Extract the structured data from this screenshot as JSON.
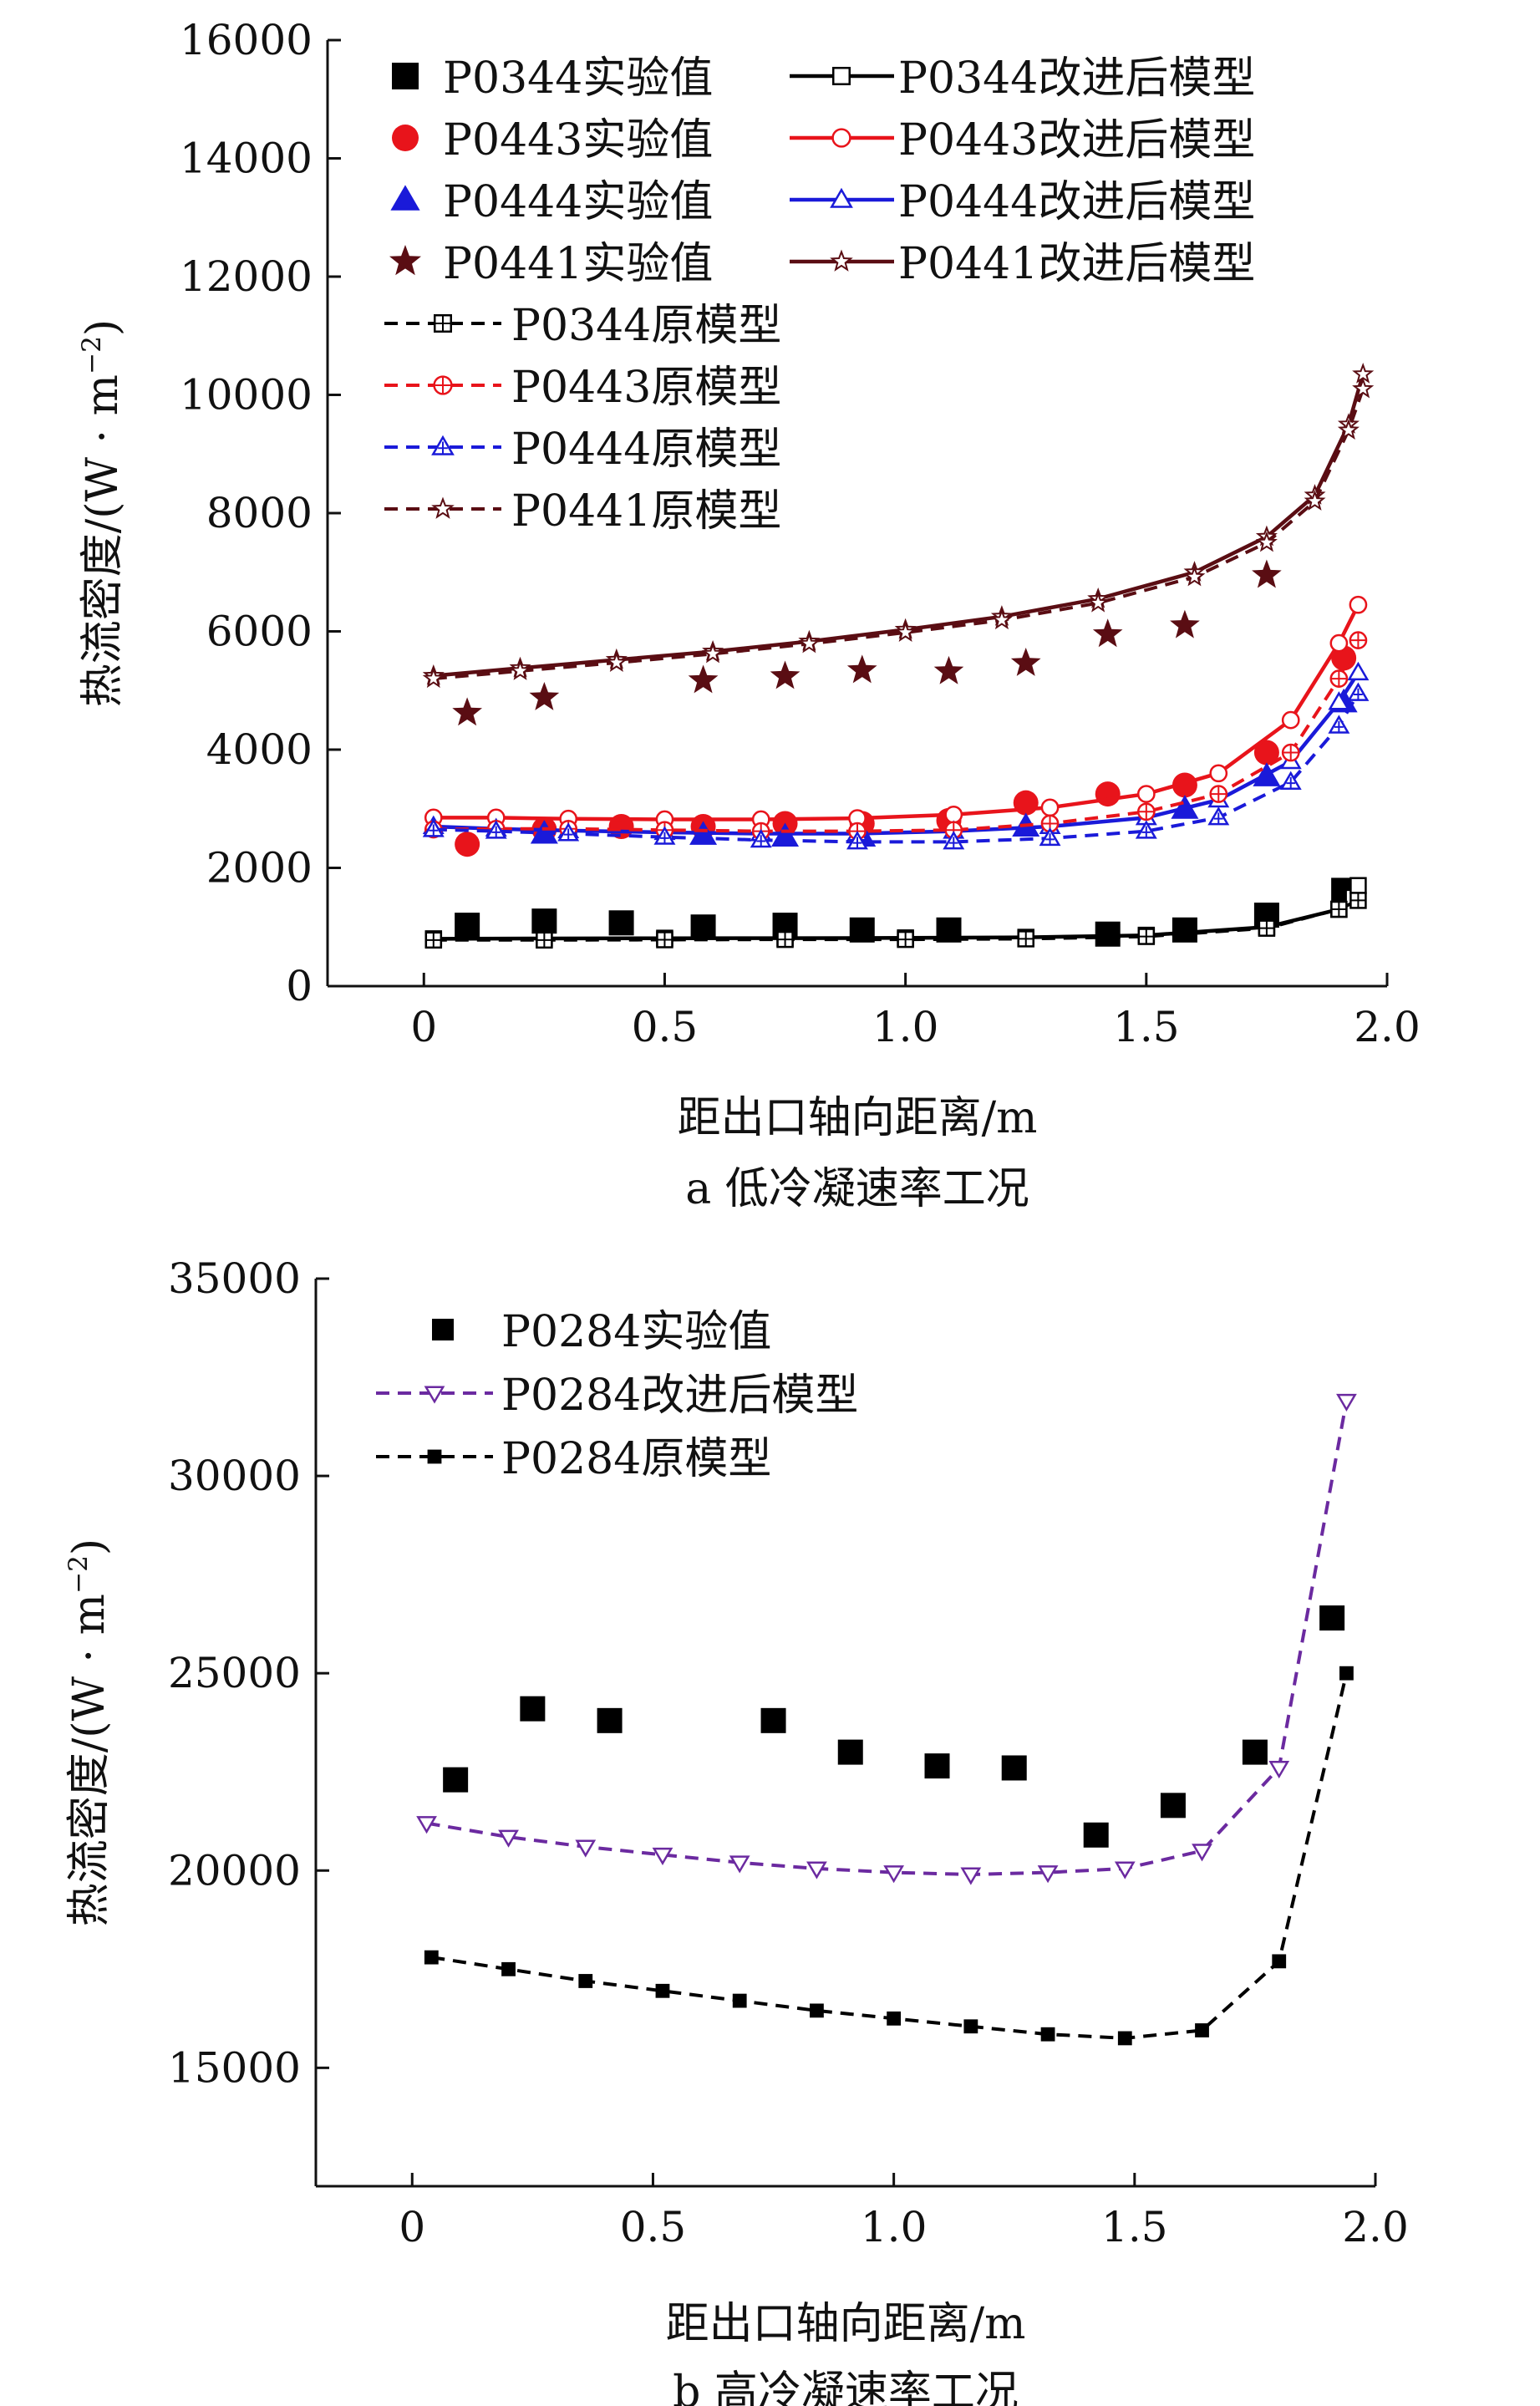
{
  "chart_data": [
    {
      "type": "scatter",
      "subtitle": "a  低冷凝速率工况",
      "xlabel": "距出口轴向距离/m",
      "ylabel": "热流密度/(W·m⁻²)",
      "ylabel_text": "热流密度/(W",
      "ylabel_dot": "·",
      "ylabel_unit": "m",
      "ylabel_exp": "−2",
      "ylabel_close": ")",
      "xlim": [
        -0.2,
        2.0
      ],
      "ylim": [
        0,
        16000
      ],
      "xticks": [
        0,
        0.5,
        1.0,
        1.5,
        2.0
      ],
      "xtick_labels": [
        "0",
        "0.5",
        "1.0",
        "1.5",
        "2.0"
      ],
      "yticks": [
        0,
        2000,
        4000,
        6000,
        8000,
        10000,
        12000,
        14000,
        16000
      ],
      "ytick_labels": [
        "0",
        "2000",
        "4000",
        "6000",
        "8000",
        "10000",
        "12000",
        "14000",
        "16000"
      ],
      "grid": false,
      "legend_position": "top-left",
      "series": [
        {
          "name": "P0344实验值",
          "kind": "exp",
          "color": "#000000",
          "marker": "square-filled",
          "x": [
            0.09,
            0.25,
            0.41,
            0.58,
            0.75,
            0.91,
            1.09,
            1.42,
            1.58,
            1.75,
            1.91
          ],
          "y": [
            1030,
            1100,
            1070,
            1000,
            1030,
            950,
            950,
            880,
            950,
            1200,
            1620
          ]
        },
        {
          "name": "P0443实验值",
          "kind": "exp",
          "color": "#e8141b",
          "marker": "circle-filled",
          "x": [
            0.09,
            0.25,
            0.41,
            0.58,
            0.75,
            0.91,
            1.09,
            1.25,
            1.42,
            1.58,
            1.75,
            1.91
          ],
          "y": [
            2400,
            2650,
            2700,
            2700,
            2750,
            2750,
            2800,
            3100,
            3250,
            3400,
            3950,
            5550
          ]
        },
        {
          "name": "P0444实验值",
          "kind": "exp",
          "color": "#1a1ad9",
          "marker": "triangle-filled",
          "x": [
            0.25,
            0.58,
            0.75,
            0.91,
            1.25,
            1.58,
            1.75,
            1.91
          ],
          "y": [
            2580,
            2560,
            2530,
            2530,
            2700,
            3000,
            3550,
            4800
          ]
        },
        {
          "name": "P0441实验值",
          "kind": "exp",
          "color": "#5a0d13",
          "marker": "star-filled",
          "x": [
            0.09,
            0.25,
            0.58,
            0.75,
            0.91,
            1.09,
            1.25,
            1.42,
            1.58,
            1.75
          ],
          "y": [
            4620,
            4880,
            5170,
            5240,
            5340,
            5320,
            5460,
            5950,
            6100,
            6950
          ]
        },
        {
          "name": "P0344改进后模型",
          "kind": "model",
          "color": "#000000",
          "marker": "square-open",
          "x": [
            0.02,
            0.25,
            0.5,
            0.75,
            1.0,
            1.25,
            1.5,
            1.75,
            1.9,
            1.93,
            1.94
          ],
          "y": [
            800,
            805,
            810,
            812,
            815,
            825,
            860,
            1000,
            1300,
            1500,
            1700
          ]
        },
        {
          "name": "P0443改进后模型",
          "kind": "model",
          "color": "#e8141b",
          "marker": "circle-open",
          "x": [
            0.02,
            0.15,
            0.3,
            0.5,
            0.7,
            0.9,
            1.1,
            1.3,
            1.5,
            1.65,
            1.8,
            1.9,
            1.94
          ],
          "y": [
            2850,
            2850,
            2830,
            2820,
            2820,
            2840,
            2900,
            3020,
            3250,
            3600,
            4500,
            5800,
            6450
          ]
        },
        {
          "name": "P0444改进后模型",
          "kind": "model",
          "color": "#1a1ad9",
          "marker": "triangle-open",
          "x": [
            0.02,
            0.15,
            0.3,
            0.5,
            0.7,
            0.9,
            1.1,
            1.3,
            1.5,
            1.65,
            1.8,
            1.9,
            1.94
          ],
          "y": [
            2700,
            2660,
            2630,
            2600,
            2580,
            2580,
            2620,
            2700,
            2850,
            3150,
            3800,
            4800,
            5300
          ]
        },
        {
          "name": "P0441改进后模型",
          "kind": "model",
          "color": "#5a0d13",
          "marker": "star-open",
          "x": [
            0.02,
            0.2,
            0.4,
            0.6,
            0.8,
            1.0,
            1.2,
            1.4,
            1.6,
            1.75,
            1.85,
            1.92,
            1.95
          ],
          "y": [
            5250,
            5380,
            5520,
            5660,
            5830,
            6030,
            6250,
            6550,
            7000,
            7600,
            8300,
            9500,
            10350
          ]
        },
        {
          "name": "P0344原模型",
          "kind": "orig",
          "color": "#000000",
          "marker": "square-plus",
          "x": [
            0.02,
            0.25,
            0.5,
            0.75,
            1.0,
            1.25,
            1.5,
            1.75,
            1.9,
            1.94
          ],
          "y": [
            780,
            780,
            785,
            790,
            790,
            800,
            840,
            980,
            1300,
            1450
          ]
        },
        {
          "name": "P0443原模型",
          "kind": "orig",
          "color": "#e8141b",
          "marker": "circle-plus",
          "x": [
            0.02,
            0.15,
            0.3,
            0.5,
            0.7,
            0.9,
            1.1,
            1.3,
            1.5,
            1.65,
            1.8,
            1.9,
            1.94
          ],
          "y": [
            2650,
            2660,
            2660,
            2640,
            2620,
            2620,
            2640,
            2750,
            2950,
            3250,
            3950,
            5200,
            5850
          ]
        },
        {
          "name": "P0444原模型",
          "kind": "orig",
          "color": "#1a1ad9",
          "marker": "triangle-plus",
          "x": [
            0.02,
            0.15,
            0.3,
            0.5,
            0.7,
            0.9,
            1.1,
            1.3,
            1.5,
            1.65,
            1.8,
            1.9,
            1.94
          ],
          "y": [
            2650,
            2620,
            2580,
            2520,
            2470,
            2440,
            2440,
            2500,
            2620,
            2850,
            3450,
            4400,
            4950
          ]
        },
        {
          "name": "P0441原模型",
          "kind": "orig",
          "color": "#5a0d13",
          "marker": "star-plus",
          "x": [
            0.02,
            0.2,
            0.4,
            0.6,
            0.8,
            1.0,
            1.2,
            1.4,
            1.6,
            1.75,
            1.85,
            1.92,
            1.95
          ],
          "y": [
            5200,
            5330,
            5470,
            5620,
            5790,
            5980,
            6190,
            6480,
            6920,
            7500,
            8200,
            9400,
            10100
          ]
        }
      ]
    },
    {
      "type": "scatter",
      "subtitle": "b  高冷凝速率工况",
      "xlabel": "距出口轴向距离/m",
      "ylabel": "热流密度/(W·m⁻²)",
      "ylabel_text": "热流密度/(W",
      "ylabel_dot": "·",
      "ylabel_unit": "m",
      "ylabel_exp": "−2",
      "ylabel_close": ")",
      "xlim": [
        -0.2,
        2.0
      ],
      "ylim": [
        12000,
        35000
      ],
      "xticks": [
        0,
        0.5,
        1.0,
        1.5,
        2.0
      ],
      "xtick_labels": [
        "0",
        "0.5",
        "1.0",
        "1.5",
        "2.0"
      ],
      "yticks": [
        15000,
        20000,
        25000,
        30000,
        35000
      ],
      "ytick_labels": [
        "15000",
        "20000",
        "25000",
        "30000",
        "35000"
      ],
      "grid": false,
      "legend_position": "top-left",
      "series": [
        {
          "name": "P0284实验值",
          "kind": "exp",
          "color": "#000000",
          "marker": "square-filled",
          "x": [
            0.09,
            0.25,
            0.41,
            0.75,
            0.91,
            1.09,
            1.25,
            1.42,
            1.58,
            1.75,
            1.91
          ],
          "y": [
            22300,
            24100,
            23800,
            23800,
            23000,
            22650,
            22600,
            20900,
            21650,
            23000,
            26400
          ]
        },
        {
          "name": "P0284改进后模型",
          "kind": "model",
          "color": "#6b2aa0",
          "marker": "triangle-down-open",
          "x": [
            0.03,
            0.2,
            0.36,
            0.52,
            0.68,
            0.84,
            1.0,
            1.16,
            1.32,
            1.48,
            1.64,
            1.8,
            1.94
          ],
          "y": [
            21200,
            20850,
            20600,
            20400,
            20200,
            20050,
            19950,
            19900,
            19950,
            20050,
            20500,
            22600,
            31900
          ]
        },
        {
          "name": "P0284原模型",
          "kind": "orig-line",
          "color": "#000000",
          "marker": "square-filled-small",
          "x": [
            0.04,
            0.2,
            0.36,
            0.52,
            0.68,
            0.84,
            1.0,
            1.16,
            1.32,
            1.48,
            1.64,
            1.8,
            1.94
          ],
          "y": [
            17800,
            17500,
            17200,
            16950,
            16700,
            16450,
            16250,
            16050,
            15850,
            15750,
            15950,
            17700,
            25000
          ]
        }
      ]
    }
  ]
}
